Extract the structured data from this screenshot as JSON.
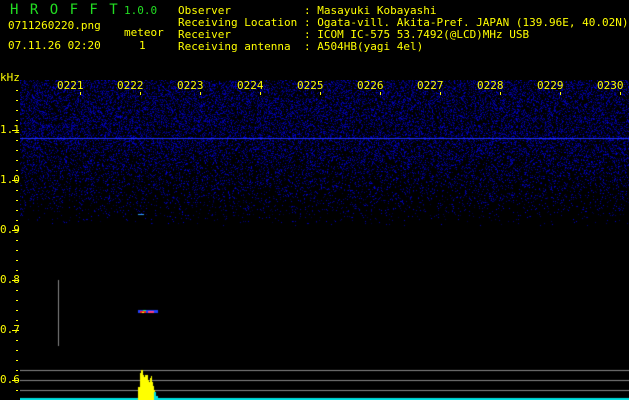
{
  "app": {
    "name": "H R O F F T",
    "version": "1.0.0"
  },
  "file": {
    "filename": "0711260220.png",
    "datetime": "07.11.26 02:20"
  },
  "meteor": {
    "label": "meteor",
    "count": "1"
  },
  "info": [
    {
      "label": "Observer",
      "value": ": Masayuki Kobayashi"
    },
    {
      "label": "Receiving Location",
      "value": ": Ogata-vill. Akita-Pref. JAPAN (139.96E, 40.02N)"
    },
    {
      "label": "Receiver",
      "value": ": ICOM IC-575 53.7492(@LCD)MHz USB"
    },
    {
      "label": "Receiving antenna",
      "value": ": A504HB(yagi 4el)"
    }
  ],
  "axis": {
    "y_unit": "kHz",
    "y_labels": [
      "1.1",
      "1.0",
      "0.9",
      "0.8",
      "0.7",
      "0.6"
    ],
    "x_labels": [
      "0221",
      "0222",
      "0223",
      "0224",
      "0225",
      "0226",
      "0227",
      "0228",
      "0229",
      "0230"
    ]
  },
  "colors": {
    "text": "#ffff00",
    "title": "#22dd22",
    "noise": "#1a1aff",
    "baseline": "#00e0e0"
  }
}
